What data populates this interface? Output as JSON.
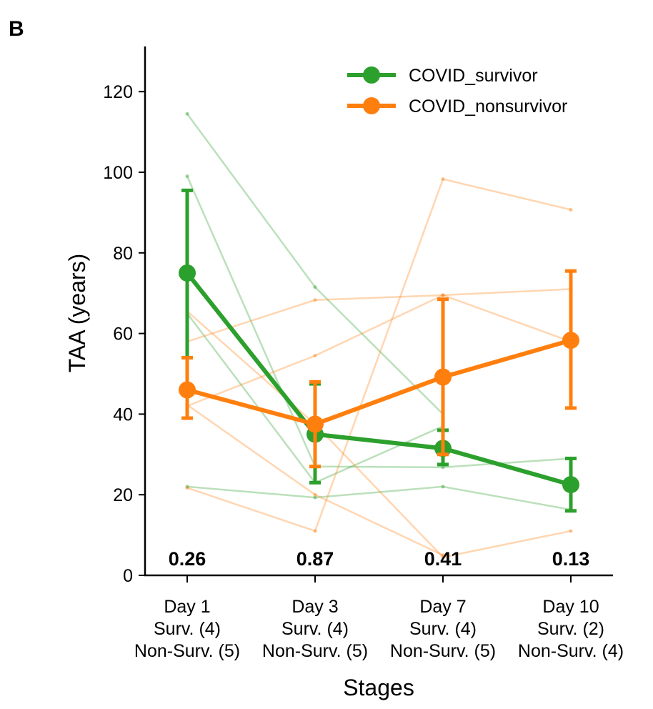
{
  "panel_label": "B",
  "chart_data": {
    "type": "line",
    "xlabel": "Stages",
    "ylabel": "TAA (years)",
    "ylim": [
      0,
      130
    ],
    "yticks": [
      0,
      20,
      40,
      60,
      80,
      100,
      120
    ],
    "categories": [
      [
        "Day 1",
        "Surv. (4)",
        "Non-Surv. (5)"
      ],
      [
        "Day 3",
        "Surv. (4)",
        "Non-Surv. (5)"
      ],
      [
        "Day 7",
        "Surv. (4)",
        "Non-Surv. (5)"
      ],
      [
        "Day 10",
        "Surv. (2)",
        "Non-Surv. (4)"
      ]
    ],
    "legend_position": "top-right",
    "p_values": [
      "0.26",
      "0.87",
      "0.41",
      "0.13"
    ],
    "series": [
      {
        "name": "COVID_survivor",
        "color": "#2ca02c",
        "means": [
          75,
          35,
          31.5,
          22.5
        ],
        "error_low": [
          54,
          23,
          27.5,
          16
        ],
        "error_high": [
          95.5,
          47.5,
          36,
          29
        ]
      },
      {
        "name": "COVID_nonsurvivor",
        "color": "#ff7f0e",
        "means": [
          46,
          37.5,
          49.2,
          58.3
        ],
        "error_low": [
          39,
          27,
          30,
          41.5
        ],
        "error_high": [
          54,
          48,
          68.5,
          75.5
        ]
      }
    ],
    "individual_lines": [
      {
        "group": "COVID_survivor",
        "values": [
          114.5,
          71.5,
          40,
          null
        ]
      },
      {
        "group": "COVID_survivor",
        "values": [
          99,
          27,
          26.8,
          29
        ]
      },
      {
        "group": "COVID_survivor",
        "values": [
          65,
          23,
          37,
          null
        ]
      },
      {
        "group": "COVID_survivor",
        "values": [
          22,
          19.3,
          22,
          16.3
        ]
      },
      {
        "group": "COVID_nonsurvivor",
        "values": [
          58,
          68.3,
          69.5,
          71
        ]
      },
      {
        "group": "COVID_nonsurvivor",
        "values": [
          42,
          54.5,
          69.5,
          58
        ]
      },
      {
        "group": "COVID_nonsurvivor",
        "values": [
          65.5,
          37.5,
          4.5,
          11
        ]
      },
      {
        "group": "COVID_nonsurvivor",
        "values": [
          21.7,
          11,
          98.3,
          90.7
        ]
      },
      {
        "group": "COVID_nonsurvivor",
        "values": [
          42.3,
          20,
          5,
          null
        ]
      }
    ]
  }
}
